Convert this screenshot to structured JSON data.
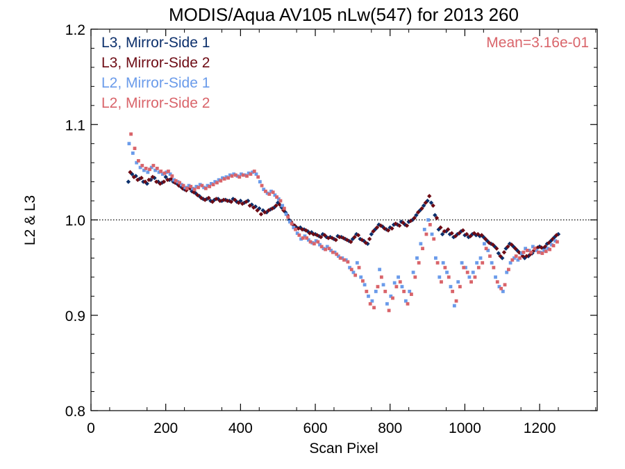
{
  "chart_data": {
    "type": "scatter",
    "title": "MODIS/Aqua AV105 nLw(547) for 2013 260",
    "xlabel": "Scan Pixel",
    "ylabel": "L2 & L3",
    "xlim": [
      0,
      1354
    ],
    "ylim": [
      0.8,
      1.2
    ],
    "xticks": [
      0,
      200,
      400,
      600,
      800,
      1000,
      1200
    ],
    "yticks": [
      0.8,
      0.9,
      1.0,
      1.1,
      1.2
    ],
    "xtick_labels": [
      "0",
      "200",
      "400",
      "600",
      "800",
      "1000",
      "1200"
    ],
    "ytick_labels": [
      "0.8",
      "0.9",
      "1.0",
      "1.1",
      "1.2"
    ],
    "reference_line": {
      "y": 1.0,
      "style": "dotted"
    },
    "annotation": {
      "text": "Mean=3.16e-01",
      "color": "#d9646a",
      "placement": "top-right"
    },
    "legend_placement": "top-left",
    "grid": false,
    "series": [
      {
        "name": "L3, Mirror-Side 1",
        "color": "#0b2f6b",
        "x": [
          100,
          110,
          120,
          130,
          140,
          150,
          160,
          170,
          180,
          190,
          200,
          210,
          220,
          230,
          240,
          250,
          260,
          270,
          280,
          290,
          300,
          310,
          320,
          330,
          340,
          350,
          360,
          370,
          380,
          390,
          400,
          410,
          420,
          430,
          440,
          450,
          460,
          470,
          480,
          490,
          500,
          510,
          520,
          530,
          540,
          550,
          560,
          570,
          580,
          590,
          600,
          610,
          620,
          630,
          640,
          650,
          660,
          670,
          680,
          690,
          700,
          710,
          720,
          730,
          740,
          750,
          760,
          770,
          780,
          790,
          800,
          810,
          820,
          830,
          840,
          850,
          860,
          870,
          880,
          890,
          900,
          910,
          920,
          930,
          940,
          950,
          960,
          970,
          980,
          990,
          1000,
          1010,
          1020,
          1030,
          1040,
          1050,
          1060,
          1070,
          1080,
          1090,
          1100,
          1110,
          1120,
          1130,
          1140,
          1150,
          1160,
          1170,
          1180,
          1190,
          1200,
          1210,
          1220,
          1230,
          1240,
          1250
        ],
        "y": [
          1.04,
          1.048,
          1.046,
          1.043,
          1.04,
          1.038,
          1.042,
          1.044,
          1.04,
          1.039,
          1.045,
          1.042,
          1.04,
          1.038,
          1.035,
          1.032,
          1.034,
          1.03,
          1.028,
          1.025,
          1.022,
          1.022,
          1.02,
          1.021,
          1.022,
          1.02,
          1.021,
          1.02,
          1.022,
          1.019,
          1.02,
          1.018,
          1.02,
          1.016,
          1.014,
          1.012,
          1.01,
          1.008,
          1.011,
          1.013,
          1.018,
          1.013,
          1.008,
          1.0,
          0.995,
          0.992,
          0.992,
          0.99,
          0.988,
          0.987,
          0.985,
          0.983,
          0.985,
          0.982,
          0.982,
          0.98,
          0.983,
          0.982,
          0.98,
          0.978,
          0.98,
          0.985,
          0.98,
          0.978,
          0.975,
          0.985,
          0.99,
          0.995,
          0.993,
          0.99,
          0.992,
          0.995,
          0.995,
          0.998,
          0.995,
          0.998,
          1.0,
          1.005,
          1.01,
          1.015,
          1.02,
          1.018,
          1.005,
          0.99,
          0.985,
          0.988,
          0.985,
          0.982,
          0.985,
          0.988,
          0.984,
          0.982,
          0.985,
          0.984,
          0.983,
          0.982,
          0.978,
          0.975,
          0.972,
          0.965,
          0.96,
          0.97,
          0.975,
          0.972,
          0.968,
          0.965,
          0.96,
          0.962,
          0.965,
          0.97,
          0.972,
          0.97,
          0.975,
          0.978,
          0.982,
          0.985
        ]
      },
      {
        "name": "L3, Mirror-Side 2",
        "color": "#6e0b14",
        "x": [
          105,
          115,
          125,
          135,
          145,
          155,
          165,
          175,
          185,
          195,
          205,
          215,
          225,
          235,
          245,
          255,
          265,
          275,
          285,
          295,
          305,
          315,
          325,
          335,
          345,
          355,
          365,
          375,
          385,
          395,
          405,
          415,
          425,
          435,
          445,
          455,
          465,
          475,
          485,
          495,
          505,
          515,
          525,
          535,
          545,
          555,
          565,
          575,
          585,
          595,
          605,
          615,
          625,
          635,
          645,
          655,
          665,
          675,
          685,
          695,
          705,
          715,
          725,
          735,
          745,
          755,
          765,
          775,
          785,
          795,
          805,
          815,
          825,
          835,
          845,
          855,
          865,
          875,
          885,
          895,
          905,
          915,
          925,
          935,
          945,
          955,
          965,
          975,
          985,
          995,
          1005,
          1015,
          1025,
          1035,
          1045,
          1055,
          1065,
          1075,
          1085,
          1095,
          1105,
          1115,
          1125,
          1135,
          1145,
          1155,
          1165,
          1175,
          1185,
          1195,
          1205,
          1215,
          1225,
          1235,
          1245
        ],
        "y": [
          1.05,
          1.045,
          1.042,
          1.044,
          1.04,
          1.042,
          1.045,
          1.04,
          1.038,
          1.04,
          1.042,
          1.043,
          1.039,
          1.036,
          1.033,
          1.031,
          1.033,
          1.029,
          1.026,
          1.023,
          1.021,
          1.023,
          1.019,
          1.022,
          1.02,
          1.021,
          1.02,
          1.019,
          1.021,
          1.018,
          1.017,
          1.019,
          1.015,
          1.013,
          1.01,
          1.006,
          1.008,
          1.01,
          1.012,
          1.015,
          1.016,
          1.01,
          1.005,
          0.998,
          0.994,
          0.991,
          0.99,
          0.989,
          0.986,
          0.985,
          0.984,
          0.982,
          0.984,
          0.981,
          0.981,
          0.979,
          0.982,
          0.981,
          0.979,
          0.977,
          0.982,
          0.984,
          0.979,
          0.976,
          0.98,
          0.988,
          0.992,
          0.994,
          0.991,
          0.989,
          0.991,
          0.996,
          0.994,
          0.997,
          0.994,
          0.999,
          1.002,
          1.008,
          1.012,
          1.018,
          1.025,
          1.015,
          1.002,
          0.992,
          0.988,
          0.99,
          0.986,
          0.983,
          0.986,
          0.989,
          0.985,
          0.983,
          0.986,
          0.985,
          0.984,
          0.98,
          0.976,
          0.974,
          0.97,
          0.962,
          0.966,
          0.972,
          0.974,
          0.97,
          0.966,
          0.962,
          0.962,
          0.964,
          0.968,
          0.971,
          0.971,
          0.972,
          0.976,
          0.98,
          0.984
        ]
      },
      {
        "name": "L2, Mirror-Side 1",
        "color": "#6a9bea",
        "x": [
          102,
          112,
          122,
          132,
          142,
          152,
          162,
          172,
          182,
          192,
          202,
          212,
          222,
          232,
          242,
          252,
          262,
          272,
          282,
          292,
          302,
          312,
          322,
          332,
          342,
          352,
          362,
          372,
          382,
          392,
          402,
          412,
          422,
          432,
          442,
          452,
          462,
          472,
          482,
          492,
          502,
          512,
          522,
          532,
          542,
          552,
          562,
          572,
          582,
          592,
          602,
          612,
          622,
          632,
          642,
          652,
          662,
          672,
          682,
          692,
          702,
          712,
          722,
          732,
          742,
          752,
          762,
          772,
          782,
          792,
          802,
          812,
          822,
          832,
          842,
          852,
          862,
          872,
          882,
          892,
          902,
          912,
          922,
          932,
          942,
          952,
          962,
          972,
          982,
          992,
          1002,
          1012,
          1022,
          1032,
          1042,
          1052,
          1062,
          1072,
          1082,
          1092,
          1102,
          1112,
          1122,
          1132,
          1142,
          1152,
          1162,
          1172,
          1182,
          1192,
          1202,
          1212,
          1222,
          1232,
          1242
        ],
        "y": [
          1.08,
          1.07,
          1.06,
          1.055,
          1.052,
          1.05,
          1.055,
          1.052,
          1.05,
          1.048,
          1.05,
          1.048,
          1.042,
          1.04,
          1.037,
          1.034,
          1.036,
          1.033,
          1.035,
          1.037,
          1.034,
          1.036,
          1.038,
          1.04,
          1.042,
          1.044,
          1.045,
          1.047,
          1.048,
          1.046,
          1.048,
          1.047,
          1.049,
          1.05,
          1.048,
          1.04,
          1.032,
          1.028,
          1.03,
          1.026,
          1.022,
          1.015,
          1.006,
          0.998,
          0.992,
          0.986,
          0.98,
          0.983,
          0.979,
          0.976,
          0.978,
          0.974,
          0.97,
          0.972,
          0.968,
          0.966,
          0.962,
          0.96,
          0.958,
          0.95,
          0.945,
          0.955,
          0.94,
          0.932,
          0.92,
          0.915,
          0.925,
          0.948,
          0.932,
          0.912,
          0.92,
          0.934,
          0.94,
          0.93,
          0.915,
          0.925,
          0.945,
          0.96,
          0.975,
          0.99,
          1.0,
          0.985,
          0.96,
          0.94,
          0.955,
          0.945,
          0.93,
          0.91,
          0.935,
          0.955,
          0.95,
          0.94,
          0.945,
          0.955,
          0.96,
          0.975,
          0.968,
          0.955,
          0.94,
          0.93,
          0.925,
          0.945,
          0.955,
          0.96,
          0.958,
          0.965,
          0.97,
          0.968,
          0.972,
          0.968,
          0.966,
          0.968,
          0.97,
          0.974,
          0.978
        ]
      },
      {
        "name": "L2, Mirror-Side 2",
        "color": "#d9646a",
        "x": [
          107,
          117,
          127,
          137,
          147,
          157,
          167,
          177,
          187,
          197,
          207,
          217,
          227,
          237,
          247,
          257,
          267,
          277,
          287,
          297,
          307,
          317,
          327,
          337,
          347,
          357,
          367,
          377,
          387,
          397,
          407,
          417,
          427,
          437,
          447,
          457,
          467,
          477,
          487,
          497,
          507,
          517,
          527,
          537,
          547,
          557,
          567,
          577,
          587,
          597,
          607,
          617,
          627,
          637,
          647,
          657,
          667,
          677,
          687,
          697,
          707,
          717,
          727,
          737,
          747,
          757,
          767,
          777,
          787,
          797,
          807,
          817,
          827,
          837,
          847,
          857,
          867,
          877,
          887,
          897,
          907,
          917,
          927,
          937,
          947,
          957,
          967,
          977,
          987,
          997,
          1007,
          1017,
          1027,
          1037,
          1047,
          1057,
          1067,
          1077,
          1087,
          1097,
          1107,
          1117,
          1127,
          1137,
          1147,
          1157,
          1167,
          1177,
          1187,
          1197,
          1207,
          1217,
          1227,
          1237,
          1247
        ],
        "y": [
          1.09,
          1.075,
          1.062,
          1.057,
          1.054,
          1.053,
          1.057,
          1.054,
          1.051,
          1.049,
          1.051,
          1.046,
          1.041,
          1.039,
          1.036,
          1.033,
          1.035,
          1.032,
          1.034,
          1.036,
          1.033,
          1.035,
          1.037,
          1.039,
          1.041,
          1.043,
          1.044,
          1.046,
          1.047,
          1.045,
          1.047,
          1.046,
          1.048,
          1.051,
          1.045,
          1.036,
          1.03,
          1.027,
          1.029,
          1.024,
          1.02,
          1.012,
          1.003,
          0.996,
          0.99,
          0.984,
          0.981,
          0.981,
          0.977,
          0.975,
          0.977,
          0.972,
          0.969,
          0.97,
          0.966,
          0.964,
          0.96,
          0.958,
          0.956,
          0.948,
          0.942,
          0.95,
          0.936,
          0.925,
          0.912,
          0.908,
          0.93,
          0.94,
          0.925,
          0.905,
          0.918,
          0.93,
          0.935,
          0.925,
          0.912,
          0.922,
          0.94,
          0.955,
          0.97,
          0.985,
          0.995,
          0.98,
          0.955,
          0.935,
          0.95,
          0.94,
          0.925,
          0.915,
          0.93,
          0.95,
          0.945,
          0.935,
          0.94,
          0.95,
          0.955,
          0.97,
          0.962,
          0.95,
          0.935,
          0.928,
          0.932,
          0.948,
          0.958,
          0.962,
          0.96,
          0.966,
          0.968,
          0.966,
          0.97,
          0.966,
          0.965,
          0.967,
          0.969,
          0.973,
          0.977
        ]
      }
    ]
  }
}
